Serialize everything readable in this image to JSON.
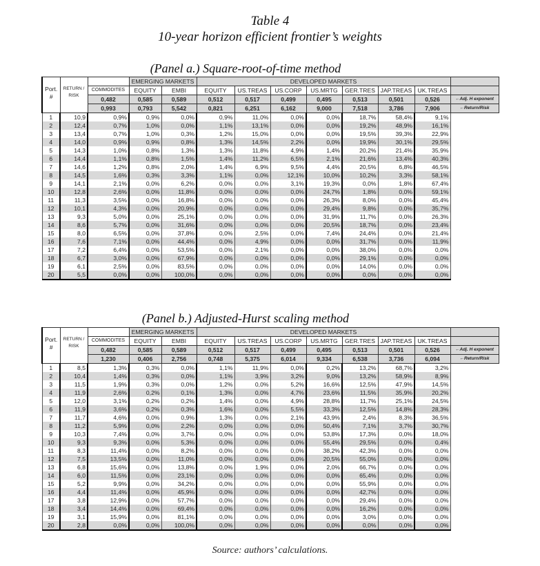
{
  "title": "Table 4",
  "subtitle": "10-year horizon efficient frontier’s weights",
  "source": "Source: authors’ calculations.",
  "headers": {
    "emerging": "EMERGING MARKETS",
    "developed": "DEVELOPED MARKETS",
    "port": "Port. #",
    "return_risk": "RETURN / RISK",
    "columns": [
      "COMMODITES",
      "EQUITY",
      "EMBI",
      "EQUITY",
      "US.TREAS",
      "US.CORP",
      "US.MRTG",
      "GER.TRES",
      "JAP.TREAS",
      "UK.TREAS"
    ],
    "h_label": "←Adj. H exponent",
    "rr_label": "←Return/Risk"
  },
  "panels": [
    {
      "title": "(Panel a.) Square-root-of-time method",
      "h_exponent": [
        "0,482",
        "0,585",
        "0,589",
        "0,512",
        "0,517",
        "0,499",
        "0,495",
        "0,513",
        "0,501",
        "0,526"
      ],
      "return_risk": [
        "0,993",
        "0,793",
        "5,542",
        "0,821",
        "6,251",
        "6,162",
        "9,000",
        "7,518",
        "3,786",
        "7,906"
      ],
      "rows": [
        [
          "1",
          "10,9",
          "0,9%",
          "0,9%",
          "0,0%",
          "0,9%",
          "11,0%",
          "0,0%",
          "0,0%",
          "18,7%",
          "58,4%",
          "9,1%"
        ],
        [
          "2",
          "12,4",
          "0,7%",
          "1,0%",
          "0,0%",
          "1,1%",
          "13,1%",
          "0,0%",
          "0,0%",
          "19,2%",
          "48,9%",
          "16,1%"
        ],
        [
          "3",
          "13,4",
          "0,7%",
          "1,0%",
          "0,3%",
          "1,2%",
          "15,0%",
          "0,0%",
          "0,0%",
          "19,5%",
          "39,3%",
          "22,9%"
        ],
        [
          "4",
          "14,0",
          "0,9%",
          "0,9%",
          "0,8%",
          "1,3%",
          "14,5%",
          "2,2%",
          "0,0%",
          "19,9%",
          "30,1%",
          "29,5%"
        ],
        [
          "5",
          "14,3",
          "1,0%",
          "0,8%",
          "1,3%",
          "1,3%",
          "11,8%",
          "4,9%",
          "1,4%",
          "20,2%",
          "21,4%",
          "35,9%"
        ],
        [
          "6",
          "14,4",
          "1,1%",
          "0,8%",
          "1,5%",
          "1,4%",
          "11,2%",
          "6,5%",
          "2,1%",
          "21,6%",
          "13,4%",
          "40,3%"
        ],
        [
          "7",
          "14,6",
          "1,2%",
          "0,8%",
          "2,0%",
          "1,4%",
          "6,9%",
          "9,5%",
          "4,4%",
          "20,5%",
          "6,8%",
          "46,5%"
        ],
        [
          "8",
          "14,5",
          "1,6%",
          "0,3%",
          "3,3%",
          "1,1%",
          "0,0%",
          "12,1%",
          "10,0%",
          "10,2%",
          "3,3%",
          "58,1%"
        ],
        [
          "9",
          "14,1",
          "2,1%",
          "0,0%",
          "6,2%",
          "0,0%",
          "0,0%",
          "3,1%",
          "19,3%",
          "0,0%",
          "1,8%",
          "67,4%"
        ],
        [
          "10",
          "12,8",
          "2,6%",
          "0,0%",
          "11,8%",
          "0,0%",
          "0,0%",
          "0,0%",
          "24,7%",
          "1,8%",
          "0,0%",
          "59,1%"
        ],
        [
          "11",
          "11,3",
          "3,5%",
          "0,0%",
          "16,8%",
          "0,0%",
          "0,0%",
          "0,0%",
          "26,3%",
          "8,0%",
          "0,0%",
          "45,4%"
        ],
        [
          "12",
          "10,1",
          "4,3%",
          "0,0%",
          "20,9%",
          "0,0%",
          "0,0%",
          "0,0%",
          "29,4%",
          "9,8%",
          "0,0%",
          "35,7%"
        ],
        [
          "13",
          "9,3",
          "5,0%",
          "0,0%",
          "25,1%",
          "0,0%",
          "0,0%",
          "0,0%",
          "31,9%",
          "11,7%",
          "0,0%",
          "26,3%"
        ],
        [
          "14",
          "8,6",
          "5,7%",
          "0,0%",
          "31,6%",
          "0,0%",
          "0,0%",
          "0,0%",
          "20,5%",
          "18,7%",
          "0,0%",
          "23,4%"
        ],
        [
          "15",
          "8,0",
          "6,5%",
          "0,0%",
          "37,8%",
          "0,0%",
          "2,5%",
          "0,0%",
          "7,4%",
          "24,4%",
          "0,0%",
          "21,4%"
        ],
        [
          "16",
          "7,6",
          "7,1%",
          "0,0%",
          "44,4%",
          "0,0%",
          "4,9%",
          "0,0%",
          "0,0%",
          "31,7%",
          "0,0%",
          "11,9%"
        ],
        [
          "17",
          "7,2",
          "6,4%",
          "0,0%",
          "53,5%",
          "0,0%",
          "2,1%",
          "0,0%",
          "0,0%",
          "38,0%",
          "0,0%",
          "0,0%"
        ],
        [
          "18",
          "6,7",
          "3,0%",
          "0,0%",
          "67,9%",
          "0,0%",
          "0,0%",
          "0,0%",
          "0,0%",
          "29,1%",
          "0,0%",
          "0,0%"
        ],
        [
          "19",
          "6,1",
          "2,5%",
          "0,0%",
          "83,5%",
          "0,0%",
          "0,0%",
          "0,0%",
          "0,0%",
          "14,0%",
          "0,0%",
          "0,0%"
        ],
        [
          "20",
          "5,5",
          "0,0%",
          "0,0%",
          "100,0%",
          "0,0%",
          "0,0%",
          "0,0%",
          "0,0%",
          "0,0%",
          "0,0%",
          "0,0%"
        ]
      ]
    },
    {
      "title": "(Panel b.) Adjusted-Hurst scaling method",
      "h_exponent": [
        "0,482",
        "0,585",
        "0,589",
        "0,512",
        "0,517",
        "0,499",
        "0,495",
        "0,513",
        "0,501",
        "0,526"
      ],
      "return_risk": [
        "1,230",
        "0,406",
        "2,756",
        "0,748",
        "5,375",
        "6,014",
        "9,334",
        "6,538",
        "3,736",
        "6,094"
      ],
      "rows": [
        [
          "1",
          "8,5",
          "1,3%",
          "0,3%",
          "0,0%",
          "1,1%",
          "11,9%",
          "0,0%",
          "0,2%",
          "13,2%",
          "68,7%",
          "3,2%"
        ],
        [
          "2",
          "10,4",
          "1,4%",
          "0,3%",
          "0,0%",
          "1,1%",
          "3,9%",
          "3,2%",
          "9,0%",
          "13,2%",
          "58,9%",
          "8,9%"
        ],
        [
          "3",
          "11,5",
          "1,9%",
          "0,3%",
          "0,0%",
          "1,2%",
          "0,0%",
          "5,2%",
          "16,6%",
          "12,5%",
          "47,9%",
          "14,5%"
        ],
        [
          "4",
          "11,9",
          "2,6%",
          "0,2%",
          "0,1%",
          "1,3%",
          "0,0%",
          "4,7%",
          "23,6%",
          "11,5%",
          "35,9%",
          "20,2%"
        ],
        [
          "5",
          "12,0",
          "3,1%",
          "0,2%",
          "0,2%",
          "1,4%",
          "0,0%",
          "4,9%",
          "28,8%",
          "11,7%",
          "25,1%",
          "24,5%"
        ],
        [
          "6",
          "11,9",
          "3,6%",
          "0,2%",
          "0,3%",
          "1,6%",
          "0,0%",
          "5,5%",
          "33,3%",
          "12,5%",
          "14,8%",
          "28,3%"
        ],
        [
          "7",
          "11,7",
          "4,6%",
          "0,0%",
          "0,9%",
          "1,3%",
          "0,0%",
          "2,1%",
          "43,9%",
          "2,4%",
          "8,3%",
          "36,5%"
        ],
        [
          "8",
          "11,2",
          "5,9%",
          "0,0%",
          "2,2%",
          "0,0%",
          "0,0%",
          "0,0%",
          "50,4%",
          "7,1%",
          "3,7%",
          "30,7%"
        ],
        [
          "9",
          "10,3",
          "7,4%",
          "0,0%",
          "3,7%",
          "0,0%",
          "0,0%",
          "0,0%",
          "53,8%",
          "17,3%",
          "0,0%",
          "18,0%"
        ],
        [
          "10",
          "9,3",
          "9,3%",
          "0,0%",
          "5,3%",
          "0,0%",
          "0,0%",
          "0,0%",
          "55,4%",
          "29,5%",
          "0,0%",
          "0,4%"
        ],
        [
          "11",
          "8,3",
          "11,4%",
          "0,0%",
          "8,2%",
          "0,0%",
          "0,0%",
          "0,0%",
          "38,2%",
          "42,3%",
          "0,0%",
          "0,0%"
        ],
        [
          "12",
          "7,5",
          "13,5%",
          "0,0%",
          "11,0%",
          "0,0%",
          "0,0%",
          "0,0%",
          "20,5%",
          "55,0%",
          "0,0%",
          "0,0%"
        ],
        [
          "13",
          "6,8",
          "15,6%",
          "0,0%",
          "13,8%",
          "0,0%",
          "1,9%",
          "0,0%",
          "2,0%",
          "66,7%",
          "0,0%",
          "0,0%"
        ],
        [
          "14",
          "6,0",
          "11,5%",
          "0,0%",
          "23,1%",
          "0,0%",
          "0,0%",
          "0,0%",
          "0,0%",
          "65,4%",
          "0,0%",
          "0,0%"
        ],
        [
          "15",
          "5,2",
          "9,9%",
          "0,0%",
          "34,2%",
          "0,0%",
          "0,0%",
          "0,0%",
          "0,0%",
          "55,9%",
          "0,0%",
          "0,0%"
        ],
        [
          "16",
          "4,4",
          "11,4%",
          "0,0%",
          "45,9%",
          "0,0%",
          "0,0%",
          "0,0%",
          "0,0%",
          "42,7%",
          "0,0%",
          "0,0%"
        ],
        [
          "17",
          "3,8",
          "12,9%",
          "0,0%",
          "57,7%",
          "0,0%",
          "0,0%",
          "0,0%",
          "0,0%",
          "29,4%",
          "0,0%",
          "0,0%"
        ],
        [
          "18",
          "3,4",
          "14,4%",
          "0,0%",
          "69,4%",
          "0,0%",
          "0,0%",
          "0,0%",
          "0,0%",
          "16,2%",
          "0,0%",
          "0,0%"
        ],
        [
          "19",
          "3,1",
          "15,9%",
          "0,0%",
          "81,1%",
          "0,0%",
          "0,0%",
          "0,0%",
          "0,0%",
          "3,0%",
          "0,0%",
          "0,0%"
        ],
        [
          "20",
          "2,8",
          "0,0%",
          "0,0%",
          "100,0%",
          "0,0%",
          "0,0%",
          "0,0%",
          "0,0%",
          "0,0%",
          "0,0%",
          "0,0%"
        ]
      ]
    }
  ]
}
